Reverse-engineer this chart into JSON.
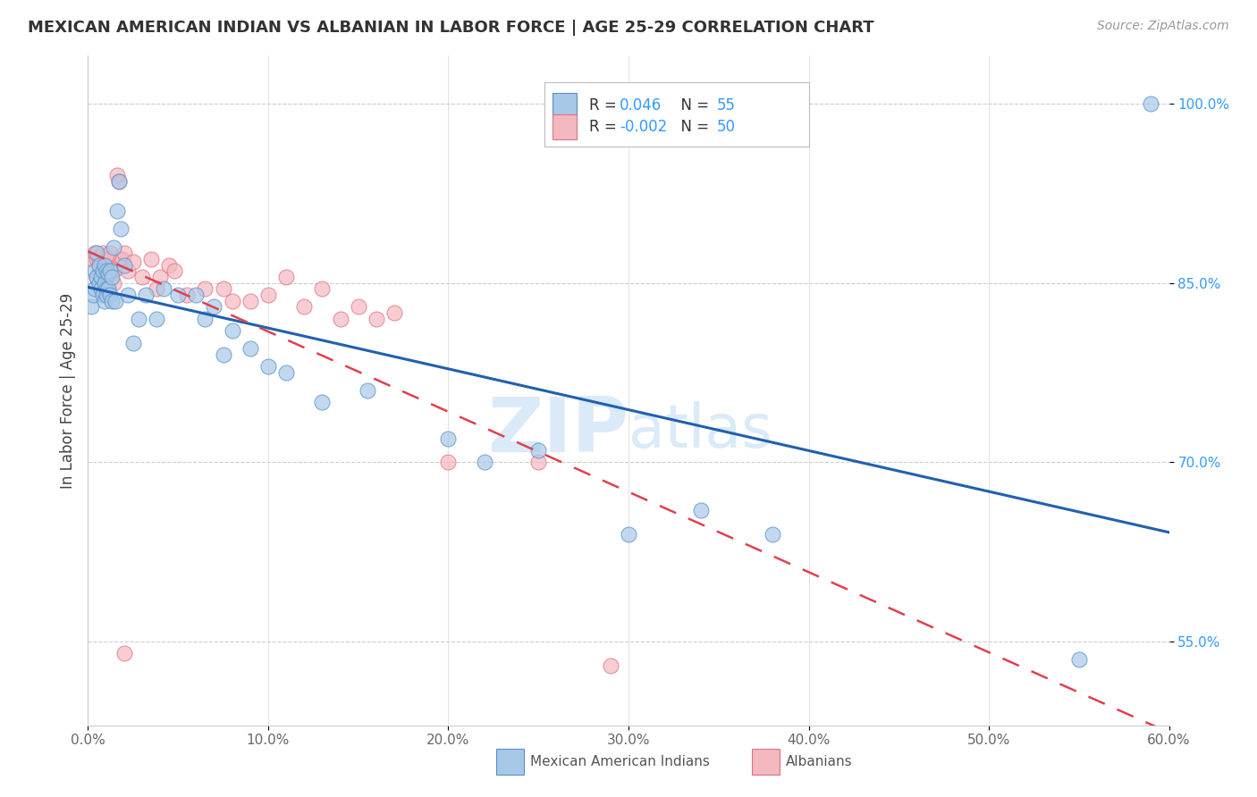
{
  "title": "MEXICAN AMERICAN INDIAN VS ALBANIAN IN LABOR FORCE | AGE 25-29 CORRELATION CHART",
  "source": "Source: ZipAtlas.com",
  "ylabel": "In Labor Force | Age 25-29",
  "xlim": [
    0.0,
    0.6
  ],
  "ylim": [
    0.48,
    1.04
  ],
  "xtick_labels": [
    "0.0%",
    "10.0%",
    "20.0%",
    "30.0%",
    "40.0%",
    "50.0%",
    "60.0%"
  ],
  "xtick_vals": [
    0.0,
    0.1,
    0.2,
    0.3,
    0.4,
    0.5,
    0.6
  ],
  "ytick_labels": [
    "55.0%",
    "70.0%",
    "85.0%",
    "100.0%"
  ],
  "ytick_vals": [
    0.55,
    0.7,
    0.85,
    1.0
  ],
  "blue_r": "0.046",
  "blue_n": "55",
  "pink_r": "-0.002",
  "pink_n": "50",
  "blue_color": "#a8c8e8",
  "pink_color": "#f4b8c0",
  "blue_edge_color": "#5590c8",
  "pink_edge_color": "#e07080",
  "blue_line_color": "#2060b0",
  "pink_line_color": "#e04050",
  "watermark_color": "#daeaf8",
  "bg_color": "#ffffff",
  "grid_color": "#cccccc",
  "title_color": "#333333",
  "source_color": "#999999",
  "ytick_color": "#3399ff",
  "xtick_color": "#666666",
  "legend_text_color": "#333333",
  "blue_x": [
    0.002,
    0.003,
    0.004,
    0.004,
    0.005,
    0.005,
    0.006,
    0.006,
    0.007,
    0.007,
    0.008,
    0.008,
    0.009,
    0.009,
    0.009,
    0.01,
    0.01,
    0.01,
    0.011,
    0.011,
    0.012,
    0.012,
    0.013,
    0.013,
    0.014,
    0.015,
    0.016,
    0.017,
    0.018,
    0.02,
    0.022,
    0.025,
    0.028,
    0.032,
    0.038,
    0.042,
    0.05,
    0.06,
    0.065,
    0.07,
    0.075,
    0.08,
    0.09,
    0.1,
    0.11,
    0.13,
    0.155,
    0.2,
    0.22,
    0.25,
    0.3,
    0.34,
    0.38,
    0.55,
    0.59
  ],
  "blue_y": [
    0.83,
    0.84,
    0.845,
    0.86,
    0.875,
    0.855,
    0.85,
    0.865,
    0.855,
    0.845,
    0.86,
    0.84,
    0.865,
    0.85,
    0.835,
    0.86,
    0.845,
    0.84,
    0.858,
    0.845,
    0.86,
    0.84,
    0.855,
    0.835,
    0.88,
    0.835,
    0.91,
    0.935,
    0.895,
    0.865,
    0.84,
    0.8,
    0.82,
    0.84,
    0.82,
    0.845,
    0.84,
    0.84,
    0.82,
    0.83,
    0.79,
    0.81,
    0.795,
    0.78,
    0.775,
    0.75,
    0.76,
    0.72,
    0.7,
    0.71,
    0.64,
    0.66,
    0.64,
    0.535,
    1.0
  ],
  "pink_x": [
    0.003,
    0.004,
    0.005,
    0.005,
    0.006,
    0.006,
    0.007,
    0.007,
    0.008,
    0.008,
    0.009,
    0.009,
    0.01,
    0.01,
    0.011,
    0.011,
    0.012,
    0.013,
    0.014,
    0.015,
    0.016,
    0.017,
    0.018,
    0.019,
    0.02,
    0.022,
    0.025,
    0.03,
    0.035,
    0.04,
    0.045,
    0.048,
    0.055,
    0.065,
    0.075,
    0.08,
    0.09,
    0.1,
    0.11,
    0.12,
    0.13,
    0.14,
    0.15,
    0.16,
    0.17,
    0.2,
    0.25,
    0.29,
    0.02,
    0.038
  ],
  "pink_y": [
    0.87,
    0.875,
    0.87,
    0.855,
    0.86,
    0.87,
    0.855,
    0.865,
    0.86,
    0.875,
    0.868,
    0.858,
    0.865,
    0.855,
    0.87,
    0.858,
    0.875,
    0.858,
    0.85,
    0.862,
    0.94,
    0.935,
    0.87,
    0.87,
    0.875,
    0.86,
    0.868,
    0.855,
    0.87,
    0.855,
    0.865,
    0.86,
    0.84,
    0.845,
    0.845,
    0.835,
    0.835,
    0.84,
    0.855,
    0.83,
    0.845,
    0.82,
    0.83,
    0.82,
    0.825,
    0.7,
    0.7,
    0.53,
    0.54,
    0.845
  ]
}
